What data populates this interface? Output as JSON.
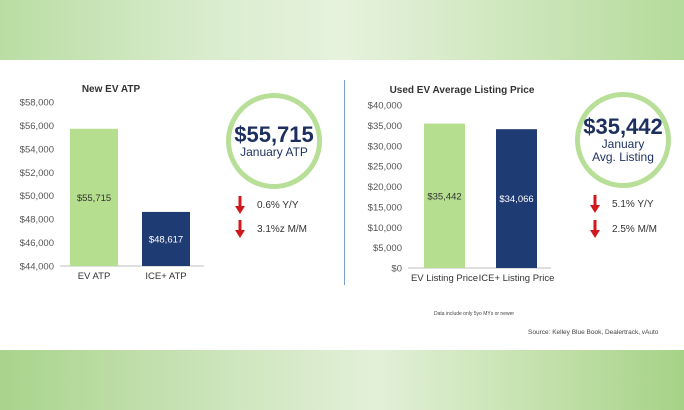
{
  "colors": {
    "ev": "#b5df8f",
    "ice": "#1f3b73",
    "ring": "#b7df97",
    "arrow": "#d0181e",
    "headline": "#1c2f5e"
  },
  "chart_data": [
    {
      "type": "bar",
      "title": "New EV ATP",
      "categories": [
        "EV ATP",
        "ICE+ ATP"
      ],
      "values": [
        55715,
        48617
      ],
      "value_labels": [
        "$55,715",
        "$48,617"
      ],
      "ylim": [
        44000,
        58000
      ],
      "yticks": [
        44000,
        46000,
        48000,
        50000,
        52000,
        54000,
        56000,
        58000
      ],
      "ytick_labels": [
        "$44,000",
        "$46,000",
        "$48,000",
        "$50,000",
        "$52,000",
        "$54,000",
        "$56,000",
        "$58,000"
      ],
      "grid": false
    },
    {
      "type": "bar",
      "title": "Used EV Average Listing Price",
      "categories": [
        "EV Listing Price",
        "ICE+ Listing Price"
      ],
      "values": [
        35442,
        34066
      ],
      "value_labels": [
        "$35,442",
        "$34,066"
      ],
      "ylim": [
        0,
        40000
      ],
      "yticks": [
        0,
        5000,
        10000,
        15000,
        20000,
        25000,
        30000,
        35000,
        40000
      ],
      "ytick_labels": [
        "$0",
        "$5,000",
        "$10,000",
        "$15,000",
        "$20,000",
        "$25,000",
        "$30,000",
        "$35,000",
        "$40,000"
      ],
      "grid": false
    }
  ],
  "callouts": {
    "new": {
      "value": "$55,715",
      "line1": "January ATP",
      "line2": ""
    },
    "used": {
      "value": "$35,442",
      "line1": "January",
      "line2": "Avg. Listing"
    }
  },
  "changes": {
    "new": [
      {
        "icon": "down-arrow-icon",
        "text": "0.6% Y/Y"
      },
      {
        "icon": "down-arrow-icon",
        "text": "3.1%z M/M"
      }
    ],
    "used": [
      {
        "icon": "down-arrow-icon",
        "text": "5.1% Y/Y"
      },
      {
        "icon": "down-arrow-icon",
        "text": "2.5% M/M"
      }
    ]
  },
  "footnote": "Data include only 5yo MYs or newer",
  "source": "Source: Kelley Blue Book, Dealertrack, vAuto"
}
